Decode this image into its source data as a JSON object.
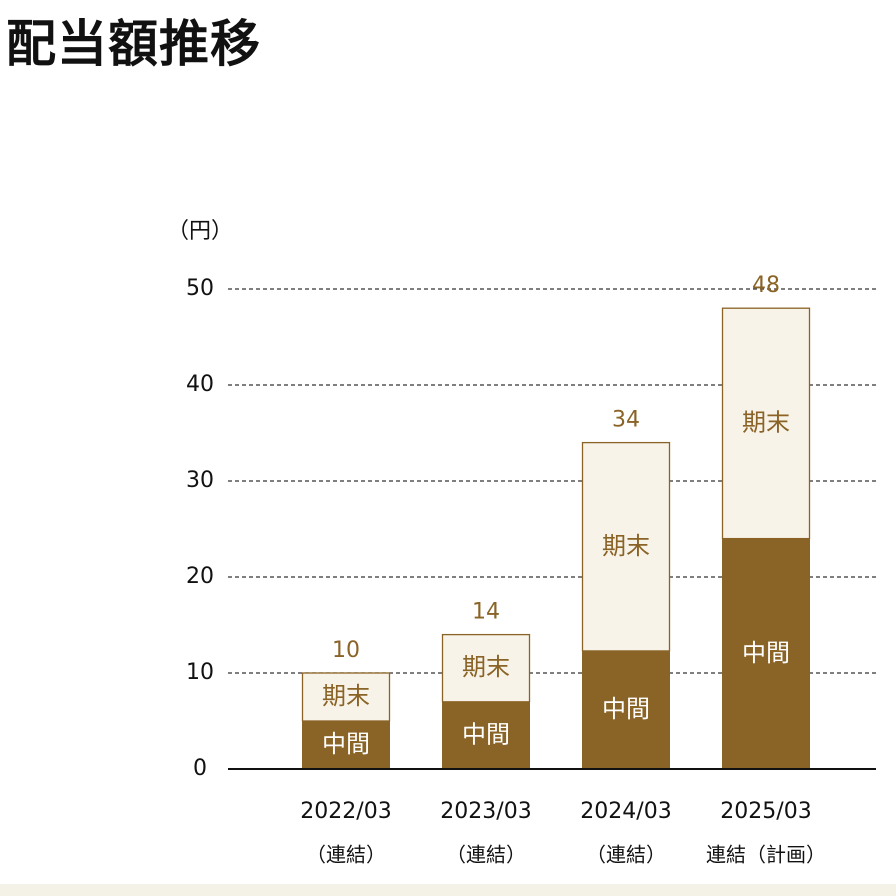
{
  "page": {
    "title": "配当額推移"
  },
  "colors": {
    "interim": "#8a6326",
    "year_end_fill": "#f8f3e8",
    "year_end_border": "#8a6326",
    "total_label": "#8a6326",
    "year_end_text": "#8a6326",
    "interim_text": "#ffffff",
    "axis": "#111111",
    "grid": "#333333"
  },
  "chart_data": {
    "type": "bar",
    "stacked": true,
    "unit_label": "（円）",
    "categories": [
      "2022/03",
      "2023/03",
      "2024/03",
      "2025/03"
    ],
    "sublabels": [
      "（連結）",
      "（連結）",
      "（連結）",
      "連結（計画）"
    ],
    "series": [
      {
        "name": "中間",
        "values": [
          5,
          7,
          12.3,
          24
        ]
      },
      {
        "name": "期末",
        "values": [
          5,
          7,
          21.7,
          24
        ]
      }
    ],
    "totals": [
      "10",
      "14",
      "34",
      "48"
    ],
    "ylim": [
      0,
      50
    ],
    "yticks": [
      0,
      10,
      20,
      30,
      40,
      50
    ],
    "grid": true,
    "grid_style": "dashed",
    "legend": "none"
  }
}
